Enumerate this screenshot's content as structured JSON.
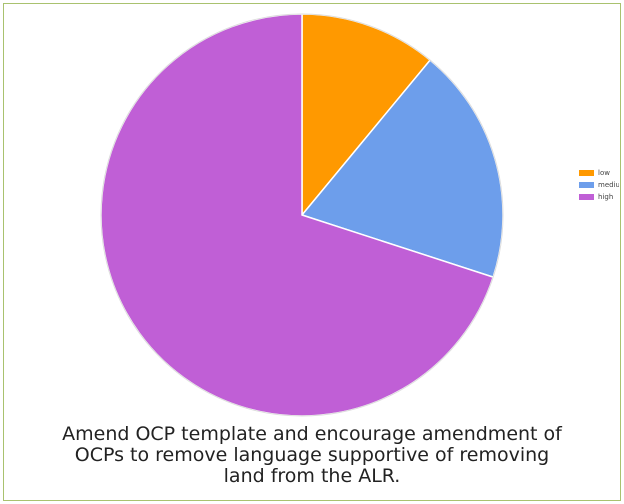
{
  "chart_data": {
    "type": "pie",
    "title": "Amend OCP template and encourage amendment of OCPs to remove language supportive of removing land from the ALR.",
    "slices": [
      {
        "label": "low",
        "value": 11,
        "color": "#ff9900"
      },
      {
        "label": "medium",
        "value": 19,
        "color": "#6d9eeb"
      },
      {
        "label": "high",
        "value": 70,
        "color": "#c05fd6"
      }
    ],
    "legend_position": "right"
  }
}
